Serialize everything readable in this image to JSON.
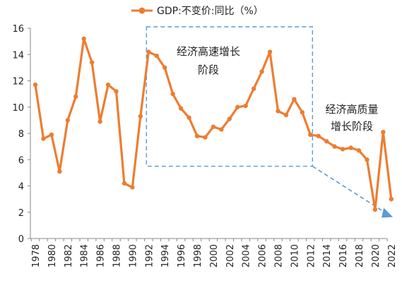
{
  "chart_data": {
    "type": "line",
    "title": "",
    "xlabel": "",
    "ylabel": "",
    "ylim": [
      0,
      16
    ],
    "yticks": [
      0,
      2,
      4,
      6,
      8,
      10,
      12,
      14,
      16
    ],
    "xlim": [
      1978,
      2022
    ],
    "xticks": [
      1978,
      1980,
      1982,
      1984,
      1986,
      1988,
      1990,
      1992,
      1994,
      1996,
      1998,
      2000,
      2002,
      2004,
      2006,
      2008,
      2010,
      2012,
      2014,
      2016,
      2018,
      2020,
      2022
    ],
    "grid": false,
    "legend": {
      "position": "top",
      "entry": "GDP:不变价:同比（%）"
    },
    "series": [
      {
        "name": "GDP:不变价:同比（%）",
        "color": "#ed7d31",
        "x": [
          1978,
          1979,
          1980,
          1981,
          1982,
          1983,
          1984,
          1985,
          1986,
          1987,
          1988,
          1989,
          1990,
          1991,
          1992,
          1993,
          1994,
          1995,
          1996,
          1997,
          1998,
          1999,
          2000,
          2001,
          2002,
          2003,
          2004,
          2005,
          2006,
          2007,
          2008,
          2009,
          2010,
          2011,
          2012,
          2013,
          2014,
          2015,
          2016,
          2017,
          2018,
          2019,
          2020,
          2021,
          2022
        ],
        "values": [
          11.7,
          7.6,
          7.9,
          5.1,
          9.0,
          10.8,
          15.2,
          13.4,
          8.9,
          11.7,
          11.2,
          4.2,
          3.9,
          9.3,
          14.2,
          13.9,
          13.0,
          11.0,
          9.9,
          9.2,
          7.8,
          7.7,
          8.5,
          8.3,
          9.1,
          10.0,
          10.1,
          11.4,
          12.7,
          14.2,
          9.7,
          9.4,
          10.6,
          9.6,
          7.9,
          7.8,
          7.4,
          7.0,
          6.8,
          6.9,
          6.7,
          6.0,
          2.2,
          8.1,
          3.0
        ]
      }
    ],
    "annotations": [
      {
        "text_lines": [
          "经济高速增长",
          "阶段"
        ],
        "color": "#5b9bd5",
        "box": {
          "x_from": 1992,
          "x_to": 2012,
          "y_from": 5.5,
          "y_to": 16
        }
      },
      {
        "text_lines": [
          "经济高质量",
          "增长阶段"
        ],
        "arrow": {
          "from": [
            2012,
            5.5
          ],
          "to": [
            2021.5,
            1.8
          ]
        },
        "arrow_color": "#5b9bd5"
      }
    ]
  }
}
